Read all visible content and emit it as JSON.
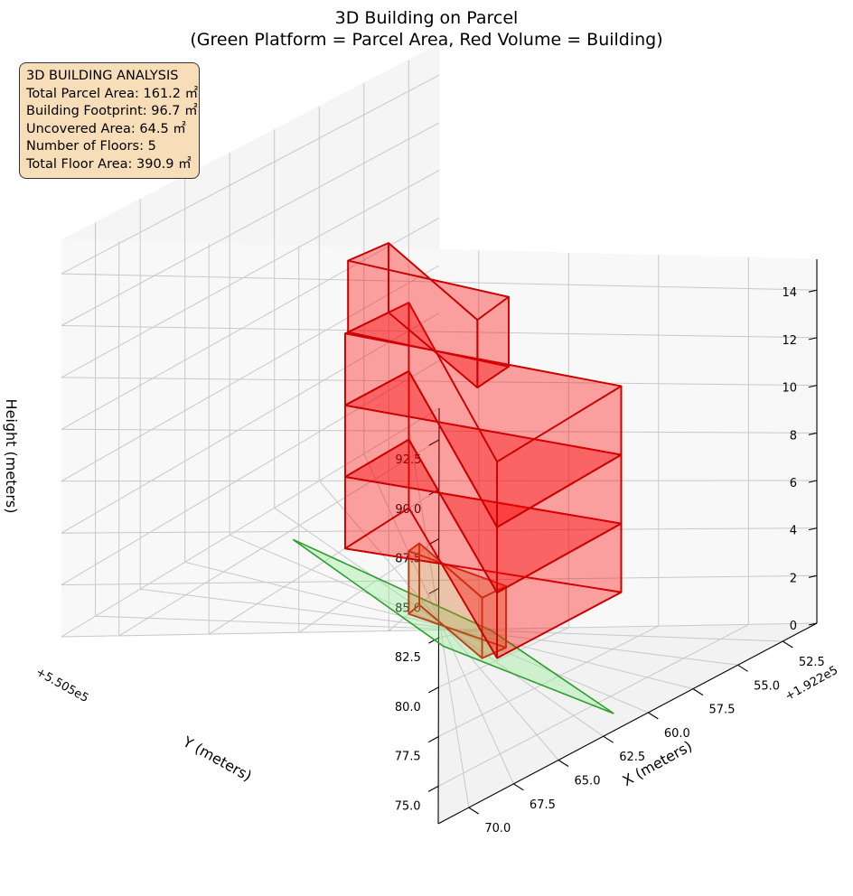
{
  "chart_data": {
    "type": "3d-volume",
    "title": "3D Building on Parcel",
    "subtitle": "(Green Platform = Parcel Area, Red Volume = Building)",
    "xlabel": "X (meters)",
    "ylabel": "Y (meters)",
    "zlabel": "Height (meters)",
    "x_offset": "+1.922e5",
    "y_offset": "+5.505e5",
    "xlim": [
      50.6,
      71.7
    ],
    "ylim": [
      73.1,
      94.1
    ],
    "zlim": [
      0,
      15.3
    ],
    "x_ticks": [
      "52.5",
      "55.0",
      "57.5",
      "60.0",
      "62.5",
      "65.0",
      "67.5",
      "70.0"
    ],
    "y_ticks": [
      "75.0",
      "77.5",
      "80.0",
      "82.5",
      "85.0",
      "87.5",
      "90.0",
      "92.5"
    ],
    "z_ticks": [
      "0",
      "2",
      "4",
      "6",
      "8",
      "10",
      "12",
      "14"
    ],
    "x_tick_values": [
      52.5,
      55.0,
      57.5,
      60.0,
      62.5,
      65.0,
      67.5,
      70.0
    ],
    "y_tick_values": [
      75.0,
      77.5,
      80.0,
      82.5,
      85.0,
      87.5,
      90.0,
      92.5
    ],
    "z_tick_values": [
      0,
      2,
      4,
      6,
      8,
      10,
      12,
      14
    ],
    "grid": true,
    "parcel": {
      "color": "#2ca02c",
      "fill": "#90ee90",
      "polygon": [
        [
          52.5,
          82.0
        ],
        [
          61.0,
          74.0
        ],
        [
          70.0,
          82.0
        ],
        [
          61.5,
          92.0
        ]
      ]
    },
    "floors": [
      {
        "floor": 1,
        "x": [
          59.0,
          63.5
        ],
        "y": [
          80.5,
          85.0
        ],
        "z": [
          0.0,
          2.6
        ],
        "color": "#d2691e"
      },
      {
        "floor": 2,
        "x": [
          55.5,
          66.5
        ],
        "y": [
          77.0,
          87.0
        ],
        "z": [
          2.6,
          5.5
        ],
        "color": "#ff0000"
      },
      {
        "floor": 3,
        "x": [
          55.5,
          66.5
        ],
        "y": [
          77.0,
          87.0
        ],
        "z": [
          5.5,
          8.4
        ],
        "color": "#ff0000"
      },
      {
        "floor": 4,
        "x": [
          55.5,
          66.5
        ],
        "y": [
          77.0,
          87.0
        ],
        "z": [
          8.4,
          11.3
        ],
        "color": "#ff0000"
      },
      {
        "floor": 5,
        "x": [
          56.0,
          63.0
        ],
        "y": [
          81.0,
          87.0
        ],
        "z": [
          11.3,
          14.2
        ],
        "color": "#ff0000"
      }
    ]
  },
  "info_box": {
    "heading": "3D BUILDING ANALYSIS",
    "lines": [
      "Total Parcel Area: 161.2 ㎡",
      "Building Footprint: 96.7 ㎡",
      "Uncovered Area: 64.5 ㎡",
      "Number of Floors: 5",
      "Total Floor Area: 390.9 ㎡"
    ]
  }
}
